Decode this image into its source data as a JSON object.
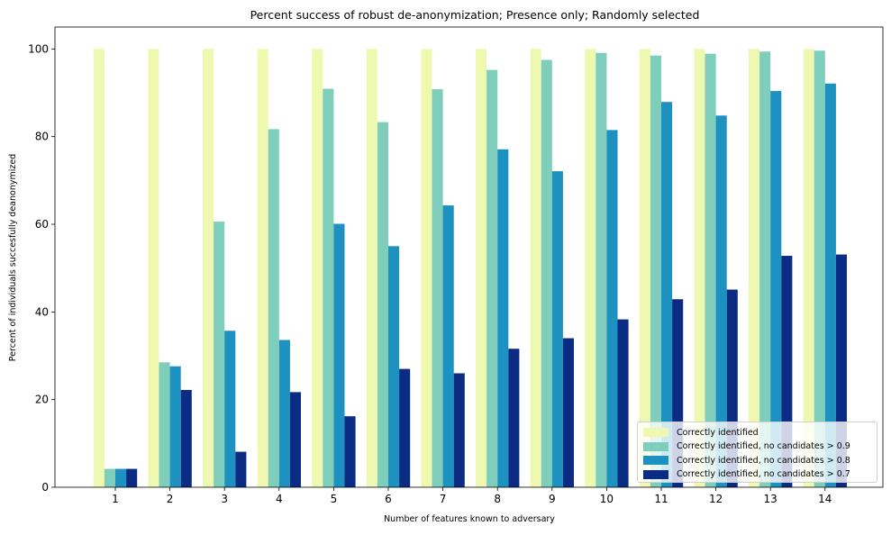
{
  "chart_data": {
    "type": "bar",
    "title": "Percent success of robust de-anonymization; Presence only; Randomly selected",
    "xlabel": "Number of features known to adversary",
    "ylabel": "Percent of individuals succesfully deanonymized",
    "categories": [
      "1",
      "2",
      "3",
      "4",
      "5",
      "6",
      "7",
      "8",
      "9",
      "10",
      "11",
      "12",
      "13",
      "14"
    ],
    "ylim": [
      0,
      105
    ],
    "yticks": [
      "0",
      "20",
      "40",
      "60",
      "80",
      "100"
    ],
    "grid": false,
    "legend_position": "bottom-right",
    "series": [
      {
        "name": "Correctly identified",
        "color": "#eef8b0",
        "values": [
          100,
          100,
          100,
          100,
          100,
          100,
          100,
          100,
          100,
          100,
          100,
          100,
          100,
          100
        ]
      },
      {
        "name": "Correctly identified, no candidates > 0.9",
        "color": "#7fcdbb",
        "values": [
          4.2,
          28.5,
          60.6,
          81.7,
          90.9,
          83.3,
          90.8,
          95.2,
          97.5,
          99.1,
          98.5,
          98.9,
          99.4,
          99.6
        ]
      },
      {
        "name": "Correctly identified, no candidates > 0.8",
        "color": "#1d91c0",
        "values": [
          4.2,
          27.6,
          35.7,
          33.6,
          60.1,
          55.0,
          64.3,
          77.1,
          72.1,
          81.5,
          87.9,
          84.8,
          90.4,
          92.1
        ]
      },
      {
        "name": "Correctly identified, no candidates > 0.7",
        "color": "#0c2c84",
        "values": [
          4.2,
          22.2,
          8.1,
          21.7,
          16.2,
          27.0,
          26.0,
          31.6,
          34.0,
          38.3,
          42.9,
          45.1,
          52.8,
          53.1
        ]
      }
    ]
  }
}
